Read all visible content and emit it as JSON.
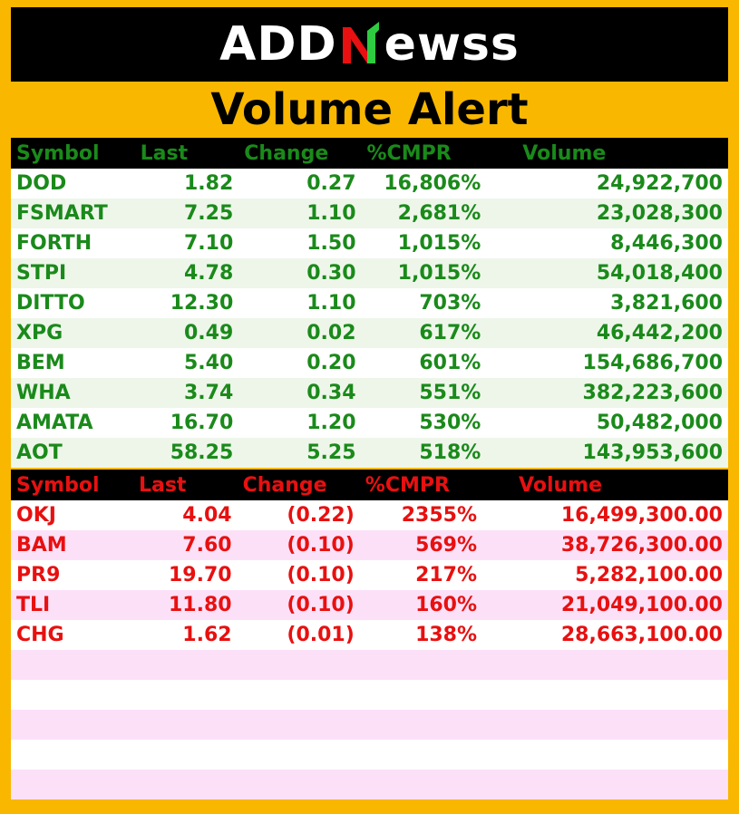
{
  "logo": {
    "part1": "ADD",
    "part2": "ewss"
  },
  "title": "Volume Alert",
  "green_table": {
    "headers": [
      "Symbol",
      "Last",
      "Change",
      "%CMPR",
      "Volume"
    ],
    "rows": [
      [
        "DOD",
        "1.82",
        "0.27",
        "16,806%",
        "24,922,700"
      ],
      [
        "FSMART",
        "7.25",
        "1.10",
        "2,681%",
        "23,028,300"
      ],
      [
        "FORTH",
        "7.10",
        "1.50",
        "1,015%",
        "8,446,300"
      ],
      [
        "STPI",
        "4.78",
        "0.30",
        "1,015%",
        "54,018,400"
      ],
      [
        "DITTO",
        "12.30",
        "1.10",
        "703%",
        "3,821,600"
      ],
      [
        "XPG",
        "0.49",
        "0.02",
        "617%",
        "46,442,200"
      ],
      [
        "BEM",
        "5.40",
        "0.20",
        "601%",
        "154,686,700"
      ],
      [
        "WHA",
        "3.74",
        "0.34",
        "551%",
        "382,223,600"
      ],
      [
        "AMATA",
        "16.70",
        "1.20",
        "530%",
        "50,482,000"
      ],
      [
        "AOT",
        "58.25",
        "5.25",
        "518%",
        "143,953,600"
      ]
    ]
  },
  "red_table": {
    "headers": [
      "Symbol",
      "Last",
      "Change",
      "%CMPR",
      "Volume"
    ],
    "rows": [
      [
        "OKJ",
        "4.04",
        "(0.22)",
        "2355%",
        "16,499,300.00"
      ],
      [
        "BAM",
        "7.60",
        "(0.10)",
        "569%",
        "38,726,300.00"
      ],
      [
        "PR9",
        "19.70",
        "(0.10)",
        "217%",
        "5,282,100.00"
      ],
      [
        "TLI",
        "11.80",
        "(0.10)",
        "160%",
        "21,049,100.00"
      ],
      [
        "CHG",
        "1.62",
        "(0.01)",
        "138%",
        "28,663,100.00"
      ]
    ]
  },
  "colors": {
    "green": "#1a8a1a",
    "red": "#e81010",
    "frame": "#f9b700"
  }
}
